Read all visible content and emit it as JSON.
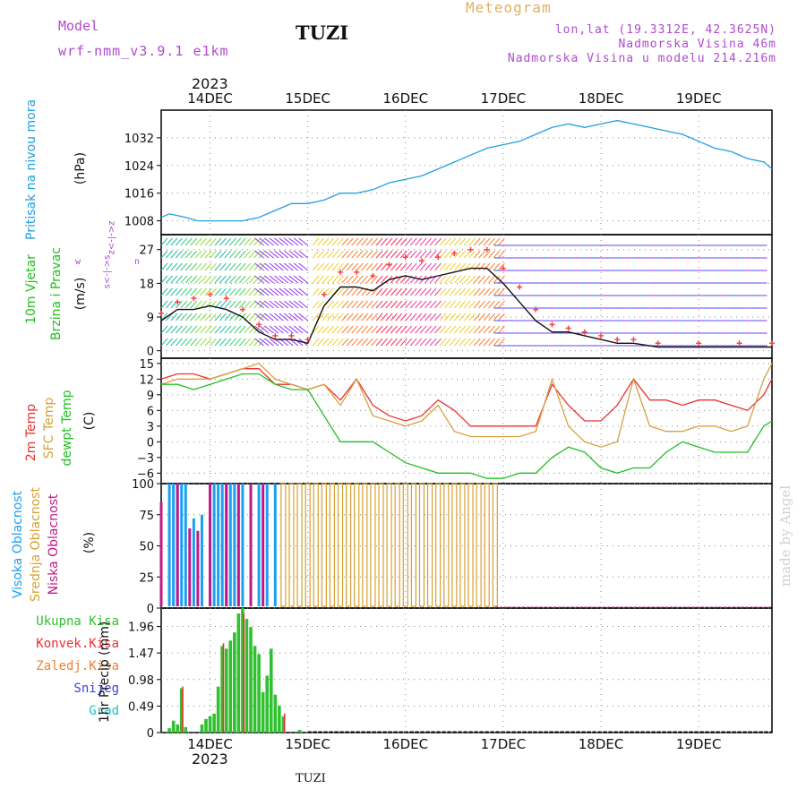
{
  "header": {
    "model_label": "Model",
    "model_name": "wrf-nmm_v3.9.1 e1km",
    "station": "TUZI",
    "title": "Meteogram",
    "lonlat": "lon,lat (19.3312E, 42.3625N)",
    "elevation": "Nadmorska Visina 46m",
    "model_elevation": "Nadmorska Visina u modelu 214.216m",
    "year": "2023",
    "footer_station": "TUZI",
    "made_by": "made by Angel"
  },
  "time_axis": {
    "labels": [
      "14DEC",
      "15DEC",
      "16DEC",
      "17DEC",
      "18DEC",
      "19DEC"
    ]
  },
  "colors": {
    "pressure": "#1fa0e0",
    "wind_speed": "#111111",
    "gust": "#ff4040",
    "temp2m": "#ee3030",
    "sfc_temp": "#d8a040",
    "dewpoint": "#20c020",
    "high_cloud": "#1aa0f0",
    "mid_cloud": "#d8a030",
    "low_cloud": "#c0188a",
    "total_precip": "#30c030",
    "conv_precip": "#ee3030",
    "frz_precip": "#f08030",
    "snow": "#4040e0",
    "hail": "#20c0c0"
  },
  "panels": {
    "pressure": {
      "label": "Pritisak na nivou mora",
      "unit": "(hPa)"
    },
    "wind": {
      "label1": "10m Vjetar",
      "label2": "Brzina i Pravac",
      "unit": "(m/s)",
      "compass": {
        "w": "w",
        "top": "z<-|->z",
        "bottom": "s<-|->s",
        "e": "n"
      }
    },
    "temperature": {
      "label1": "2m Temp",
      "label2": "SFC Temp",
      "label3": "dewpt Temp",
      "unit": "(C)"
    },
    "cloud": {
      "label1": "Visoka Oblacnost",
      "label2": "Srednja Oblacnost",
      "label3": "Niska Oblacnost",
      "unit": "(%)"
    },
    "precip": {
      "legend": [
        "Ukupna Kisa",
        "Konvek.Kisa",
        "Zaledj.Kisa",
        "Snijeg",
        "Grad"
      ],
      "unit": "1hr Precip (mm)"
    }
  },
  "chart_data": [
    {
      "type": "line",
      "title": "Pritisak na nivou mora",
      "ylabel": "(hPa)",
      "ylim": [
        1004,
        1040
      ],
      "yticks": [
        1008,
        1016,
        1024,
        1032
      ],
      "xlim_hours": [
        -12,
        138
      ],
      "grid": true,
      "series": [
        {
          "name": "Pritisak na nivou mora",
          "x_hours": [
            -12,
            -10,
            -6,
            -3,
            0,
            4,
            8,
            12,
            16,
            20,
            24,
            28,
            32,
            36,
            40,
            44,
            48,
            52,
            56,
            60,
            64,
            68,
            72,
            76,
            80,
            84,
            88,
            92,
            96,
            100,
            104,
            108,
            112,
            116,
            120,
            124,
            128,
            132,
            136,
            138
          ],
          "values": [
            1009,
            1010,
            1009,
            1008,
            1008,
            1008,
            1008,
            1009,
            1011,
            1013,
            1013,
            1014,
            1016,
            1016,
            1017,
            1019,
            1020,
            1021,
            1023,
            1025,
            1027,
            1029,
            1030,
            1031,
            1033,
            1035,
            1036,
            1035,
            1036,
            1037,
            1036,
            1035,
            1034,
            1033,
            1031,
            1029,
            1028,
            1026,
            1025,
            1023
          ]
        }
      ]
    },
    {
      "type": "line",
      "title": "10m Vjetar Brzina i Pravac",
      "ylabel": "(m/s)",
      "ylim": [
        -2,
        31
      ],
      "yticks": [
        0,
        9,
        18,
        27
      ],
      "series": [
        {
          "name": "Brzina",
          "x_hours": [
            -12,
            -8,
            -4,
            0,
            4,
            8,
            12,
            16,
            20,
            24,
            28,
            32,
            36,
            40,
            44,
            48,
            52,
            56,
            60,
            64,
            68,
            72,
            76,
            80,
            84,
            88,
            92,
            96,
            100,
            104,
            110,
            120,
            130,
            138
          ],
          "values": [
            8,
            11,
            11,
            12,
            11,
            9,
            5,
            3,
            3,
            2,
            12,
            17,
            17,
            16,
            19,
            20,
            19,
            20,
            21,
            22,
            22,
            18,
            13,
            8,
            5,
            5,
            4,
            3,
            2,
            2,
            1,
            1,
            1,
            1
          ]
        },
        {
          "name": "Udar",
          "x_hours": [
            -12,
            -8,
            -4,
            0,
            4,
            8,
            12,
            16,
            20,
            24,
            28,
            32,
            36,
            40,
            44,
            48,
            52,
            56,
            60,
            64,
            68,
            72,
            76,
            80,
            84,
            88,
            92,
            96,
            100,
            104,
            110,
            120,
            130,
            138
          ],
          "values": [
            10,
            13,
            14,
            15,
            14,
            11,
            7,
            4,
            4,
            3,
            15,
            21,
            21,
            20,
            23,
            25,
            24,
            25,
            26,
            27,
            27,
            22,
            17,
            11,
            7,
            6,
            5,
            4,
            3,
            3,
            2,
            2,
            2,
            2
          ]
        }
      ]
    },
    {
      "type": "line",
      "title": "Temperature",
      "ylabel": "(C)",
      "ylim": [
        -8,
        16
      ],
      "yticks": [
        -6,
        -3,
        0,
        3,
        6,
        9,
        12,
        15
      ],
      "series": [
        {
          "name": "2m Temp",
          "x_hours": [
            -12,
            -8,
            -4,
            0,
            4,
            8,
            12,
            16,
            20,
            24,
            28,
            32,
            36,
            40,
            44,
            48,
            52,
            56,
            60,
            64,
            68,
            72,
            76,
            80,
            84,
            88,
            92,
            96,
            100,
            104,
            108,
            112,
            116,
            120,
            124,
            128,
            132,
            136,
            138
          ],
          "values": [
            12,
            13,
            13,
            12,
            13,
            14,
            14,
            11,
            11,
            10,
            11,
            8,
            12,
            7,
            5,
            4,
            5,
            8,
            6,
            3,
            3,
            3,
            3,
            3,
            11,
            7,
            4,
            4,
            7,
            12,
            8,
            8,
            7,
            8,
            8,
            7,
            6,
            9,
            12
          ]
        },
        {
          "name": "SFC Temp",
          "x_hours": [
            -12,
            -8,
            -4,
            0,
            4,
            8,
            12,
            16,
            20,
            24,
            28,
            32,
            36,
            40,
            44,
            48,
            52,
            56,
            60,
            64,
            68,
            72,
            76,
            80,
            84,
            88,
            92,
            96,
            100,
            104,
            108,
            112,
            116,
            120,
            124,
            128,
            132,
            136,
            138
          ],
          "values": [
            11,
            12,
            12,
            12,
            13,
            14,
            15,
            12,
            11,
            10,
            11,
            7,
            12,
            5,
            4,
            3,
            4,
            7,
            2,
            1,
            1,
            1,
            1,
            2,
            12,
            3,
            0,
            -1,
            0,
            12,
            3,
            2,
            2,
            3,
            3,
            2,
            3,
            12,
            15
          ]
        },
        {
          "name": "dewpt Temp",
          "x_hours": [
            -12,
            -8,
            -4,
            0,
            4,
            8,
            12,
            16,
            20,
            24,
            28,
            32,
            36,
            40,
            44,
            48,
            52,
            56,
            60,
            64,
            68,
            72,
            76,
            80,
            84,
            88,
            92,
            96,
            100,
            104,
            108,
            112,
            116,
            120,
            124,
            128,
            132,
            136,
            138
          ],
          "values": [
            11,
            11,
            10,
            11,
            12,
            13,
            13,
            11,
            10,
            10,
            5,
            0,
            0,
            0,
            -2,
            -4,
            -5,
            -6,
            -6,
            -6,
            -7,
            -7,
            -6,
            -6,
            -3,
            -1,
            -2,
            -5,
            -6,
            -5,
            -5,
            -2,
            0,
            -1,
            -2,
            -2,
            -2,
            3,
            4
          ]
        }
      ]
    },
    {
      "type": "bar",
      "title": "Oblacnost",
      "ylabel": "(%)",
      "ylim": [
        0,
        100
      ],
      "yticks": [
        0,
        25,
        50,
        75,
        100
      ],
      "series": [
        {
          "name": "Visoka Oblacnost",
          "x_hours": [
            -10,
            -9,
            -8,
            -7,
            -6,
            -4,
            -2,
            0,
            1,
            2,
            3,
            4,
            5,
            6,
            8,
            10,
            12,
            14,
            16
          ],
          "values": [
            100,
            100,
            100,
            100,
            100,
            72,
            75,
            100,
            100,
            100,
            100,
            100,
            100,
            100,
            100,
            100,
            100,
            100,
            100
          ]
        },
        {
          "name": "Srednja Oblacnost",
          "x_hours": [
            18,
            20,
            22,
            24,
            26,
            28,
            30,
            32,
            34,
            36,
            38,
            40,
            42,
            44,
            46,
            48,
            50,
            52,
            54,
            56,
            58,
            60,
            62,
            64,
            66,
            68,
            70
          ],
          "values": [
            100,
            100,
            100,
            100,
            100,
            100,
            100,
            100,
            100,
            100,
            100,
            100,
            100,
            100,
            100,
            100,
            100,
            100,
            100,
            100,
            100,
            100,
            100,
            100,
            100,
            100,
            100
          ]
        },
        {
          "name": "Niska Oblacnost",
          "x_hours": [
            -12,
            -8,
            -5,
            -3,
            0,
            4,
            7,
            10,
            13
          ],
          "values": [
            85,
            100,
            64,
            62,
            100,
            100,
            100,
            100,
            100
          ]
        }
      ]
    },
    {
      "type": "bar",
      "title": "1hr Precip",
      "ylabel": "1hr Precip (mm)",
      "ylim": [
        0,
        2.3
      ],
      "yticks": [
        0,
        0.49,
        0.98,
        1.47,
        1.96
      ],
      "series": [
        {
          "name": "Ukupna Kisa",
          "x_hours": [
            -10,
            -9,
            -8,
            -7,
            -6,
            -2,
            -1,
            0,
            1,
            2,
            3,
            4,
            5,
            6,
            7,
            8,
            9,
            10,
            11,
            12,
            13,
            14,
            15,
            16,
            17,
            18,
            22
          ],
          "values": [
            0.08,
            0.22,
            0.15,
            0.82,
            0.1,
            0.15,
            0.25,
            0.3,
            0.35,
            0.85,
            1.6,
            1.55,
            1.7,
            1.85,
            2.2,
            2.3,
            2.1,
            1.95,
            1.6,
            1.45,
            0.75,
            1.05,
            1.55,
            0.7,
            0.5,
            0.3,
            0.05
          ]
        },
        {
          "name": "Konvek.Kisa",
          "x_hours": [
            -7,
            3,
            8,
            18
          ],
          "values": [
            0.85,
            1.65,
            2.2,
            0.35
          ]
        }
      ]
    }
  ]
}
